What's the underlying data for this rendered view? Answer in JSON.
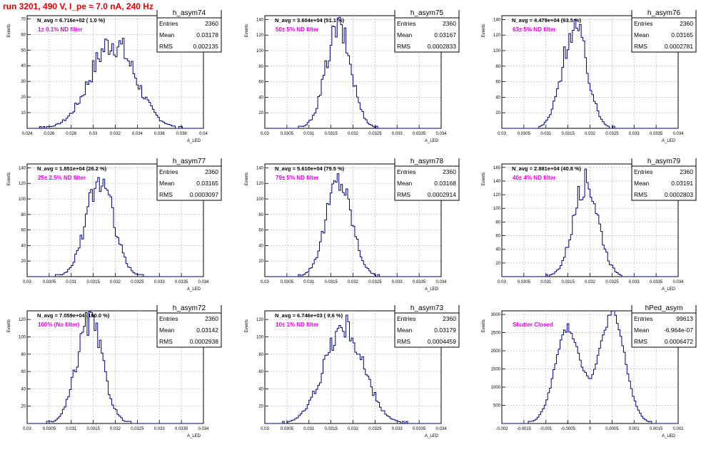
{
  "page": {
    "title": "run 3201,   490 V, I_pe ≈ 7.0 nA, 240 Hz"
  },
  "colors": {
    "title": "#e00000",
    "annotation": "#e000e0",
    "histogram_line": "#00007a",
    "axes": "#000000",
    "grid": "#bdbdbd"
  },
  "chart_data": [
    {
      "type": "bar",
      "name": "h_asym74",
      "stats": {
        "entries_label": "Entries",
        "entries": "2360",
        "mean_label": "Mean",
        "mean": "0.03178",
        "rms_label": "RMS",
        "rms": "0.002135"
      },
      "navg": "N_avg = 6.716e+02 ( 1.0 %)",
      "annotation": "1± 0.1% ND filter",
      "ylabel": "Events",
      "xlabel": "A_LED",
      "xlim": [
        0.024,
        0.04
      ],
      "ylim": [
        0,
        72
      ],
      "xticks": [
        0.024,
        0.026,
        0.028,
        0.03,
        0.032,
        0.034,
        0.036,
        0.038,
        0.04
      ],
      "xtick_labels": [
        "0.024",
        "0.026",
        "0.028",
        "0.03",
        "0.032",
        "0.034",
        "0.036",
        "0.038",
        "0.04"
      ],
      "yticks": [
        10,
        20,
        30,
        40,
        50,
        60,
        70
      ],
      "ytick_labels": [
        "10",
        "20",
        "30",
        "40",
        "50",
        "60",
        "70"
      ],
      "mean": 0.03178,
      "rms": 0.002135,
      "peak": 58,
      "bimodal": true
    },
    {
      "type": "bar",
      "name": "h_asym75",
      "stats": {
        "entries_label": "Entries",
        "entries": "2360",
        "mean_label": "Mean",
        "mean": "0.03167",
        "rms_label": "RMS",
        "rms": "0.0002833"
      },
      "navg": "N_avg = 3.604e+04 (51.1 %)",
      "annotation": "50± 5% ND filter",
      "ylabel": "Events",
      "xlabel": "A_LED",
      "xlim": [
        0.03,
        0.034
      ],
      "ylim": [
        0,
        145
      ],
      "xticks": [
        0.03,
        0.0305,
        0.031,
        0.0315,
        0.032,
        0.0325,
        0.033,
        0.0335,
        0.034
      ],
      "xtick_labels": [
        "0.03",
        "0.0305",
        "0.031",
        "0.0315",
        "0.032",
        "0.0325",
        "0.033",
        "0.0335",
        "0.034"
      ],
      "yticks": [
        20,
        40,
        60,
        80,
        100,
        120,
        140
      ],
      "ytick_labels": [
        "20",
        "40",
        "60",
        "80",
        "100",
        "120",
        "140"
      ],
      "mean": 0.03167,
      "rms": 0.0002833,
      "peak": 138
    },
    {
      "type": "bar",
      "name": "h_asym76",
      "stats": {
        "entries_label": "Entries",
        "entries": "2360",
        "mean_label": "Mean",
        "mean": "0.03165",
        "rms_label": "RMS",
        "rms": "0.0002781"
      },
      "navg": "N_avg = 4.479e+04 (63.5 %)",
      "annotation": "63± 5% ND filter",
      "ylabel": "Events",
      "xlabel": "A_LED",
      "xlim": [
        0.03,
        0.034
      ],
      "ylim": [
        0,
        145
      ],
      "xticks": [
        0.03,
        0.0305,
        0.031,
        0.0315,
        0.032,
        0.0325,
        0.033,
        0.0335,
        0.034
      ],
      "xtick_labels": [
        "0.03",
        "0.0305",
        "0.031",
        "0.0315",
        "0.032",
        "0.0325",
        "0.033",
        "0.0335",
        "0.034"
      ],
      "yticks": [
        20,
        40,
        60,
        80,
        100,
        120,
        140
      ],
      "ytick_labels": [
        "20",
        "40",
        "60",
        "80",
        "100",
        "120",
        "140"
      ],
      "mean": 0.03165,
      "rms": 0.0002781,
      "peak": 140
    },
    {
      "type": "bar",
      "name": "h_asym77",
      "stats": {
        "entries_label": "Entries",
        "entries": "2360",
        "mean_label": "Mean",
        "mean": "0.03165",
        "rms_label": "RMS",
        "rms": "0.0003097"
      },
      "navg": "N_avg = 1.851e+04 (26.2 %)",
      "annotation": "25± 2.5% ND filter",
      "ylabel": "Events",
      "xlabel": "A_LED",
      "xlim": [
        0.03,
        0.034
      ],
      "ylim": [
        0,
        145
      ],
      "xticks": [
        0.03,
        0.0305,
        0.031,
        0.0315,
        0.032,
        0.0325,
        0.033,
        0.0335,
        0.034
      ],
      "xtick_labels": [
        "0.03",
        "0.0305",
        "0.031",
        "0.0315",
        "0.032",
        "0.0325",
        "0.033",
        "0.0335",
        "0.034"
      ],
      "yticks": [
        20,
        40,
        60,
        80,
        100,
        120,
        140
      ],
      "ytick_labels": [
        "20",
        "40",
        "60",
        "80",
        "100",
        "120",
        "140"
      ],
      "mean": 0.03165,
      "rms": 0.0003097,
      "peak": 132
    },
    {
      "type": "bar",
      "name": "h_asym78",
      "stats": {
        "entries_label": "Entries",
        "entries": "2360",
        "mean_label": "Mean",
        "mean": "0.03168",
        "rms_label": "RMS",
        "rms": "0.0002914"
      },
      "navg": "N_avg = 5.610e+04 (79.5 %)",
      "annotation": "79± 5% ND filter",
      "ylabel": "Events",
      "xlabel": "A_LED",
      "xlim": [
        0.03,
        0.034
      ],
      "ylim": [
        0,
        145
      ],
      "xticks": [
        0.03,
        0.0305,
        0.031,
        0.0315,
        0.032,
        0.0325,
        0.033,
        0.0335,
        0.034
      ],
      "xtick_labels": [
        "0.03",
        "0.0305",
        "0.031",
        "0.0315",
        "0.032",
        "0.0325",
        "0.033",
        "0.0335",
        "0.034"
      ],
      "yticks": [
        20,
        40,
        60,
        80,
        100,
        120,
        140
      ],
      "ytick_labels": [
        "20",
        "40",
        "60",
        "80",
        "100",
        "120",
        "140"
      ],
      "mean": 0.03168,
      "rms": 0.0002914,
      "peak": 132
    },
    {
      "type": "bar",
      "name": "h_asym79",
      "stats": {
        "entries_label": "Entries",
        "entries": "2360",
        "mean_label": "Mean",
        "mean": "0.03191",
        "rms_label": "RMS",
        "rms": "0.0002803"
      },
      "navg": "N_avg = 2.881e+04 (40.8 %)",
      "annotation": "40± 4% ND filter",
      "ylabel": "Events",
      "xlabel": "A_LED",
      "xlim": [
        0.03,
        0.034
      ],
      "ylim": [
        0,
        165
      ],
      "xticks": [
        0.03,
        0.0305,
        0.031,
        0.0315,
        0.032,
        0.0325,
        0.033,
        0.0335,
        0.034
      ],
      "xtick_labels": [
        "0.03",
        "0.0305",
        "0.031",
        "0.0315",
        "0.032",
        "0.0325",
        "0.033",
        "0.0335",
        "0.034"
      ],
      "yticks": [
        20,
        40,
        60,
        80,
        100,
        120,
        140,
        160
      ],
      "ytick_labels": [
        "20",
        "40",
        "60",
        "80",
        "100",
        "120",
        "140",
        "160"
      ],
      "mean": 0.03191,
      "rms": 0.0002803,
      "peak": 148
    },
    {
      "type": "bar",
      "name": "h_asym72",
      "stats": {
        "entries_label": "Entries",
        "entries": "2360",
        "mean_label": "Mean",
        "mean": "0.03142",
        "rms_label": "RMS",
        "rms": "0.0002938"
      },
      "navg": "N_avg = 7.059e+04 (100.0 %)",
      "annotation": "100% (No filter)",
      "ylabel": "Events",
      "xlabel": "A_LED",
      "xlim": [
        0.03,
        0.034
      ],
      "ylim": [
        0,
        130
      ],
      "xticks": [
        0.03,
        0.0305,
        0.031,
        0.0315,
        0.032,
        0.0325,
        0.033,
        0.0335,
        0.034
      ],
      "xtick_labels": [
        "0.03",
        "0.0305",
        "0.031",
        "0.0315",
        "0.032",
        "0.0325",
        "0.033",
        "0.0335",
        "0.034"
      ],
      "yticks": [
        20,
        40,
        60,
        80,
        100,
        120
      ],
      "ytick_labels": [
        "20",
        "40",
        "60",
        "80",
        "100",
        "120"
      ],
      "mean": 0.03142,
      "rms": 0.0002938,
      "peak": 125
    },
    {
      "type": "bar",
      "name": "h_asym73",
      "stats": {
        "entries_label": "Entries",
        "entries": "2360",
        "mean_label": "Mean",
        "mean": "0.03179",
        "rms_label": "RMS",
        "rms": "0.0004459"
      },
      "navg": "N_avg = 6.746e+03 ( 9.6 %)",
      "annotation": "10± 1% ND filter",
      "ylabel": "Events",
      "xlabel": "A_LED",
      "xlim": [
        0.03,
        0.034
      ],
      "ylim": [
        0,
        130
      ],
      "xticks": [
        0.03,
        0.0305,
        0.031,
        0.0315,
        0.032,
        0.0325,
        0.033,
        0.0335,
        0.034
      ],
      "xtick_labels": [
        "0.03",
        "0.0305",
        "0.031",
        "0.0315",
        "0.032",
        "0.0325",
        "0.033",
        "0.0335",
        "0.034"
      ],
      "yticks": [
        20,
        40,
        60,
        80,
        100,
        120
      ],
      "ytick_labels": [
        "20",
        "40",
        "60",
        "80",
        "100",
        "120"
      ],
      "mean": 0.03179,
      "rms": 0.0004459,
      "peak": 118
    },
    {
      "type": "bar",
      "name": "hPed_asym",
      "stats": {
        "entries_label": "Entries",
        "entries": "99613",
        "mean_label": "Mean",
        "mean": "-6.964e-07",
        "rms_label": "RMS",
        "rms": "0.0006472"
      },
      "navg": "",
      "annotation": "Shutter Closed",
      "ylabel": "Events",
      "xlabel": "A_LED",
      "xlim": [
        -0.002,
        0.002
      ],
      "ylim": [
        0,
        3100
      ],
      "xticks": [
        -0.002,
        -0.0015,
        -0.001,
        -0.0005,
        0,
        0.0005,
        0.001,
        0.0015,
        0.002
      ],
      "xtick_labels": [
        "-0.002",
        "-0.0015",
        "-0.001",
        "-0.0005",
        "0",
        "0.0005",
        "0.001",
        "0.0015",
        "0.002"
      ],
      "yticks": [
        500,
        1000,
        1500,
        2000,
        2500,
        3000
      ],
      "ytick_labels": [
        "500",
        "1000",
        "1500",
        "2000",
        "2500",
        "3000"
      ],
      "mean": -6.964e-07,
      "rms": 0.0006472,
      "peak": 3000,
      "double_peak": true
    }
  ]
}
